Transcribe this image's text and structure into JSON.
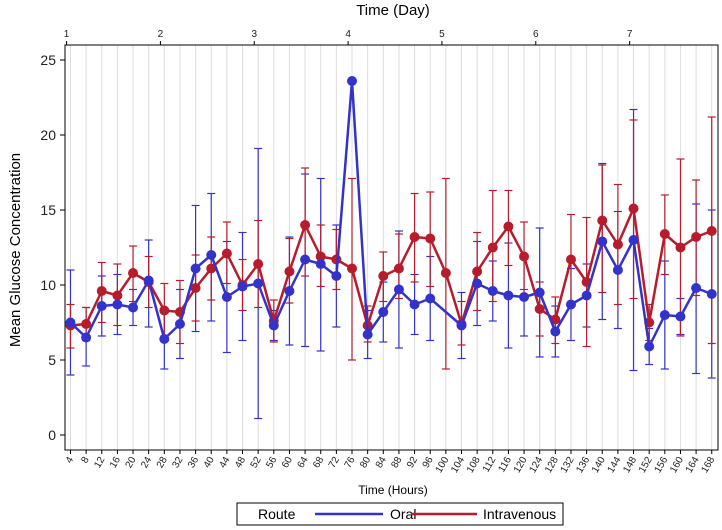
{
  "chart_data": {
    "type": "line",
    "title": "",
    "top_axis_label": "Time (Day)",
    "xlabel": "Time (Hours)",
    "ylabel": "Mean Glucose Concentration",
    "ylim": [
      -1,
      26
    ],
    "yticks": [
      0,
      5,
      10,
      15,
      20,
      25
    ],
    "xlim": [
      2.6,
      169.6
    ],
    "x": [
      4,
      8,
      12,
      16,
      20,
      24,
      28,
      32,
      36,
      40,
      44,
      48,
      52,
      56,
      60,
      64,
      68,
      72,
      76,
      80,
      84,
      88,
      92,
      96,
      100,
      104,
      108,
      112,
      116,
      120,
      124,
      128,
      132,
      136,
      140,
      144,
      148,
      152,
      156,
      160,
      164,
      168
    ],
    "top_ticks": [
      {
        "label": "1",
        "hour": 3
      },
      {
        "label": "2",
        "hour": 27
      },
      {
        "label": "3",
        "hour": 51
      },
      {
        "label": "4",
        "hour": 75
      },
      {
        "label": "5",
        "hour": 99
      },
      {
        "label": "6",
        "hour": 123
      },
      {
        "label": "7",
        "hour": 147
      }
    ],
    "grid": true,
    "legend_title": "Route",
    "legend_position": "bottom",
    "series": [
      {
        "name": "Oral",
        "color": "#3333cc",
        "values": [
          7.5,
          6.5,
          8.6,
          8.7,
          8.5,
          10.3,
          6.4,
          7.4,
          11.1,
          12.0,
          9.2,
          9.9,
          10.1,
          7.3,
          9.6,
          11.7,
          11.4,
          10.6,
          23.6,
          6.7,
          8.2,
          9.7,
          8.7,
          9.1,
          null,
          7.3,
          10.1,
          9.6,
          9.3,
          9.2,
          9.5,
          6.9,
          8.7,
          9.3,
          12.9,
          11.0,
          13.0,
          5.9,
          8.0,
          7.9,
          9.8,
          9.4
        ],
        "lower": [
          4.0,
          4.6,
          6.6,
          6.7,
          7.3,
          7.2,
          4.4,
          5.1,
          6.9,
          7.6,
          5.5,
          6.3,
          1.1,
          6.3,
          6.0,
          5.9,
          5.6,
          7.2,
          null,
          5.1,
          6.2,
          5.8,
          6.7,
          6.3,
          null,
          5.1,
          7.3,
          7.6,
          5.8,
          6.6,
          5.2,
          5.2,
          6.3,
          7.2,
          7.7,
          7.1,
          4.3,
          4.7,
          4.4,
          6.7,
          4.1,
          3.8
        ],
        "upper": [
          11.0,
          8.5,
          10.6,
          10.7,
          9.7,
          13.0,
          8.4,
          9.7,
          15.3,
          16.1,
          12.9,
          13.5,
          19.1,
          8.3,
          13.2,
          17.4,
          17.1,
          14.0,
          null,
          8.3,
          10.2,
          13.6,
          10.7,
          11.9,
          null,
          9.5,
          12.9,
          11.6,
          12.8,
          11.8,
          13.8,
          8.6,
          11.1,
          11.4,
          18.1,
          14.9,
          21.7,
          7.1,
          11.6,
          9.1,
          15.4,
          15.0
        ]
      },
      {
        "name": "Intravenous",
        "color": "#b71c2c",
        "values": [
          7.3,
          7.4,
          9.6,
          9.3,
          10.8,
          10.2,
          8.3,
          8.2,
          9.8,
          11.1,
          12.1,
          10.0,
          11.4,
          7.6,
          10.9,
          14.0,
          11.9,
          11.7,
          11.1,
          7.3,
          10.6,
          11.1,
          13.2,
          13.1,
          10.8,
          7.4,
          10.9,
          12.5,
          13.9,
          11.9,
          8.4,
          7.7,
          11.7,
          10.2,
          14.3,
          12.7,
          15.1,
          7.5,
          13.4,
          12.5,
          13.2,
          13.6
        ],
        "lower": [
          5.8,
          6.3,
          7.5,
          7.3,
          8.9,
          8.5,
          6.6,
          6.1,
          7.6,
          9.0,
          10.1,
          8.3,
          8.5,
          6.2,
          8.8,
          10.6,
          9.9,
          9.7,
          5.0,
          6.2,
          8.9,
          9.1,
          10.2,
          9.9,
          4.4,
          6.0,
          8.3,
          8.9,
          11.3,
          9.7,
          6.6,
          6.1,
          8.6,
          5.9,
          9.5,
          8.7,
          9.1,
          6.3,
          10.7,
          6.6,
          9.3,
          6.1
        ],
        "upper": [
          8.7,
          8.5,
          11.5,
          11.4,
          12.6,
          11.9,
          10.1,
          10.3,
          12.0,
          13.2,
          14.2,
          11.7,
          14.3,
          9.0,
          13.1,
          17.8,
          14.0,
          13.7,
          17.1,
          8.6,
          12.2,
          13.4,
          16.1,
          16.2,
          17.1,
          8.9,
          13.5,
          16.3,
          16.3,
          14.2,
          10.2,
          9.2,
          14.7,
          14.5,
          18.0,
          16.7,
          21.0,
          8.7,
          16.0,
          18.4,
          17.0,
          21.2
        ]
      }
    ]
  }
}
